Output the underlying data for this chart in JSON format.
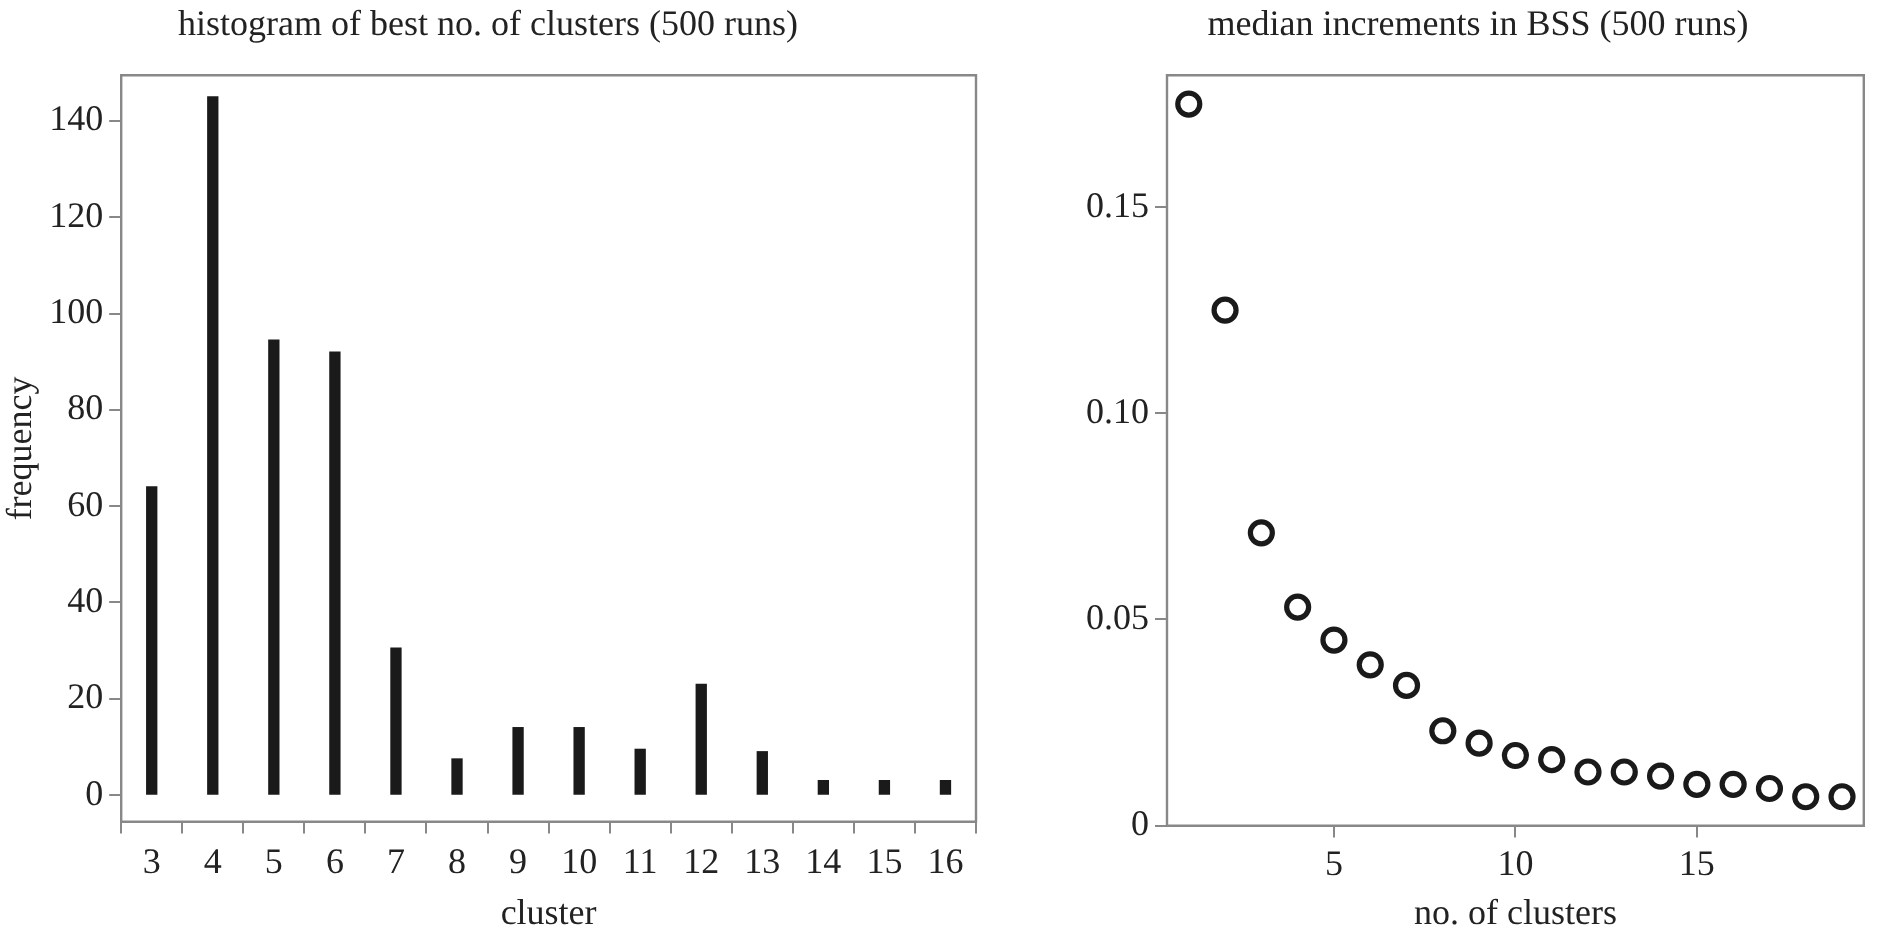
{
  "chart_data": [
    {
      "type": "bar",
      "title": "histogram of best no. of clusters (500 runs)",
      "xlabel": "cluster",
      "ylabel": "frequency",
      "categories": [
        "3",
        "4",
        "5",
        "6",
        "7",
        "8",
        "9",
        "10",
        "11",
        "12",
        "13",
        "14",
        "15",
        "16"
      ],
      "values": [
        64,
        145,
        94.5,
        92,
        30.5,
        7.5,
        14,
        14,
        9.5,
        23,
        9,
        3,
        3,
        3
      ],
      "color": "#1a1a1a",
      "ylim": [
        -5.5,
        149.5
      ],
      "yticks": [
        0,
        20,
        40,
        60,
        80,
        100,
        120,
        140
      ],
      "grid": false,
      "legend": false
    },
    {
      "type": "scatter",
      "title": "median increments in BSS (500 runs)",
      "xlabel": "no. of clusters",
      "x": [
        1,
        2,
        3,
        4,
        5,
        6,
        7,
        8,
        9,
        10,
        11,
        12,
        13,
        14,
        15,
        16,
        17,
        18,
        19
      ],
      "values": [
        0.175,
        0.125,
        0.071,
        0.053,
        0.045,
        0.039,
        0.034,
        0.023,
        0.02,
        0.017,
        0.016,
        0.013,
        0.013,
        0.012,
        0.01,
        0.01,
        0.009,
        0.007,
        0.007
      ],
      "color": "#1a1a1a",
      "marker": "circle",
      "xlim": [
        0.4,
        19.6
      ],
      "xticks": [
        5,
        10,
        15
      ],
      "ylim": [
        0,
        0.182
      ],
      "yticks": [
        {
          "value": 0,
          "label": "0"
        },
        {
          "value": 0.05,
          "label": "0.05"
        },
        {
          "value": 0.1,
          "label": "0.10"
        },
        {
          "value": 0.15,
          "label": "0.15"
        }
      ],
      "grid": false,
      "legend": false
    }
  ]
}
